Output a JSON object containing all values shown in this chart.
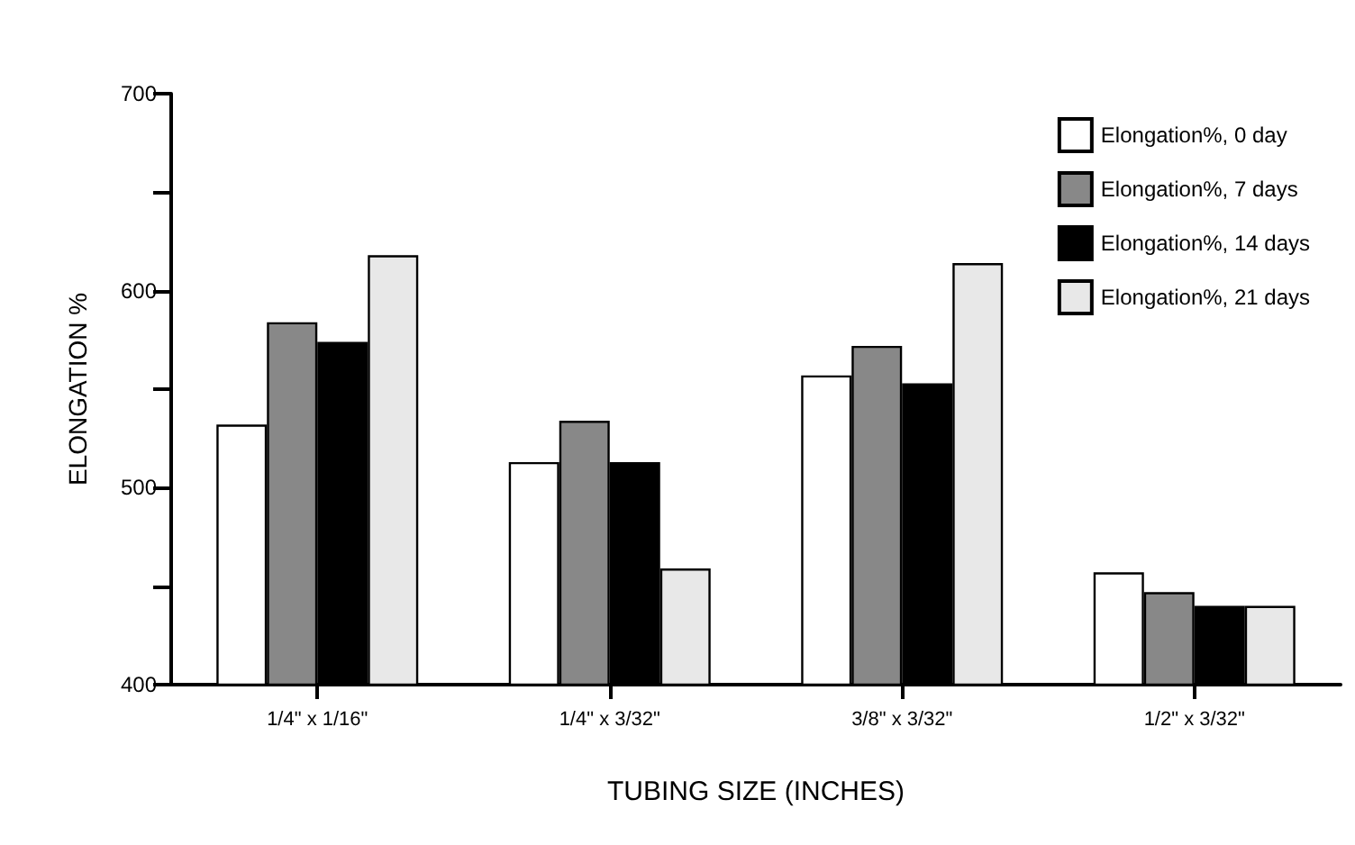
{
  "chart_data": {
    "type": "bar",
    "xlabel": "TUBING SIZE (INCHES)",
    "ylabel": "ELONGATION %",
    "categories": [
      "1/4\" x 1/16\"",
      "1/4\" x 3/32\"",
      "3/8\" x 3/32\"",
      "1/2\" x 3/32\""
    ],
    "series": [
      {
        "name": "Elongation%, 0 day",
        "color": "#ffffff",
        "values": [
          532,
          513,
          557,
          457
        ]
      },
      {
        "name": "Elongation%, 7 days",
        "color": "#888888",
        "values": [
          584,
          534,
          572,
          447
        ]
      },
      {
        "name": "Elongation%, 14 days",
        "color": "#000000",
        "values": [
          574,
          513,
          553,
          440
        ]
      },
      {
        "name": "Elongation%, 21 days",
        "color": "#e8e8e8",
        "values": [
          618,
          459,
          614,
          440
        ]
      }
    ],
    "ylim": [
      400,
      700
    ],
    "yticks": [
      400,
      {
        "value": 450,
        "label": null
      },
      500,
      {
        "value": 550,
        "label": null
      },
      600,
      {
        "value": 650,
        "label": null
      },
      700
    ],
    "grid": false,
    "legend": "top right"
  }
}
